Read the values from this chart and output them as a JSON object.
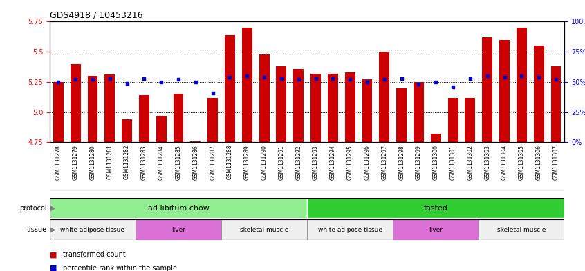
{
  "title": "GDS4918 / 10453216",
  "samples": [
    "GSM1131278",
    "GSM1131279",
    "GSM1131280",
    "GSM1131281",
    "GSM1131282",
    "GSM1131283",
    "GSM1131284",
    "GSM1131285",
    "GSM1131286",
    "GSM1131287",
    "GSM1131288",
    "GSM1131289",
    "GSM1131290",
    "GSM1131291",
    "GSM1131292",
    "GSM1131293",
    "GSM1131294",
    "GSM1131295",
    "GSM1131296",
    "GSM1131297",
    "GSM1131298",
    "GSM1131299",
    "GSM1131300",
    "GSM1131301",
    "GSM1131302",
    "GSM1131303",
    "GSM1131304",
    "GSM1131305",
    "GSM1131306",
    "GSM1131307"
  ],
  "bar_values": [
    5.25,
    5.4,
    5.3,
    5.31,
    4.94,
    5.14,
    4.97,
    5.15,
    4.76,
    5.12,
    5.64,
    5.7,
    5.48,
    5.38,
    5.36,
    5.32,
    5.32,
    5.33,
    5.27,
    5.5,
    5.2,
    5.25,
    4.82,
    5.12,
    5.12,
    5.62,
    5.6,
    5.7,
    5.55,
    5.38
  ],
  "percentile_values": [
    50,
    52,
    52,
    53,
    49,
    53,
    50,
    52,
    50,
    41,
    54,
    55,
    54,
    53,
    52,
    53,
    53,
    52,
    50,
    52,
    53,
    48,
    50,
    46,
    53,
    55,
    54,
    55,
    54,
    52
  ],
  "ylim": [
    4.75,
    5.75
  ],
  "yticks_left": [
    4.75,
    5.0,
    5.25,
    5.5,
    5.75
  ],
  "yticks_right": [
    0,
    25,
    50,
    75,
    100
  ],
  "bar_color": "#cc0000",
  "dot_color": "#0000cc",
  "xtick_bg": "#c8c8c8",
  "protocols": [
    {
      "label": "ad libitum chow",
      "start": 0,
      "end": 15,
      "color": "#90ee90"
    },
    {
      "label": "fasted",
      "start": 15,
      "end": 30,
      "color": "#32cd32"
    }
  ],
  "tissues": [
    {
      "label": "white adipose tissue",
      "start": 0,
      "end": 5,
      "color": "#f0f0f0"
    },
    {
      "label": "liver",
      "start": 5,
      "end": 10,
      "color": "#da70d6"
    },
    {
      "label": "skeletal muscle",
      "start": 10,
      "end": 15,
      "color": "#f0f0f0"
    },
    {
      "label": "white adipose tissue",
      "start": 15,
      "end": 20,
      "color": "#f0f0f0"
    },
    {
      "label": "liver",
      "start": 20,
      "end": 25,
      "color": "#da70d6"
    },
    {
      "label": "skeletal muscle",
      "start": 25,
      "end": 30,
      "color": "#f0f0f0"
    }
  ],
  "legend_items": [
    {
      "label": "transformed count",
      "color": "#cc0000"
    },
    {
      "label": "percentile rank within the sample",
      "color": "#0000cc"
    }
  ]
}
